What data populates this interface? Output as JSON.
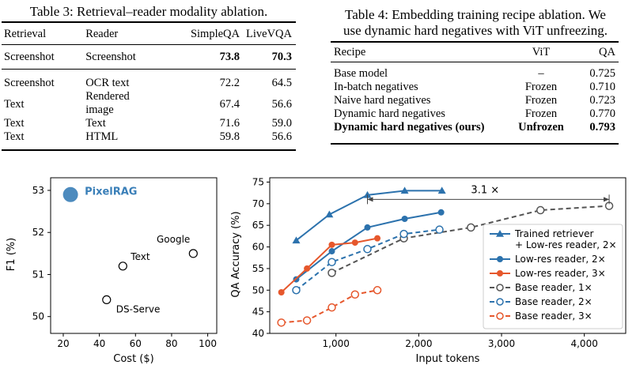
{
  "table3": {
    "caption": "Table 3: Retrieval–reader modality ablation.",
    "headers": [
      "Retrieval",
      "Reader",
      "SimpleQA",
      "LiveVQA"
    ],
    "rows": [
      [
        "Screenshot",
        "Screenshot",
        "73.8",
        "70.3"
      ],
      [
        "Screenshot",
        "OCR text",
        "72.2",
        "64.5"
      ],
      [
        "Text",
        "Rendered image",
        "67.4",
        "56.6"
      ],
      [
        "Text",
        "Text",
        "71.6",
        "59.0"
      ],
      [
        "Text",
        "HTML",
        "59.8",
        "56.6"
      ]
    ]
  },
  "table4": {
    "caption_line1": "Table 4: Embedding training recipe ablation. We",
    "caption_line2": "use dynamic hard negatives with ViT unfreezing.",
    "headers": [
      "Recipe",
      "ViT",
      "QA"
    ],
    "rows": [
      [
        "Base model",
        "–",
        "0.725"
      ],
      [
        "In-batch negatives",
        "Frozen",
        "0.710"
      ],
      [
        "Naive hard negatives",
        "Frozen",
        "0.723"
      ],
      [
        "Dynamic hard negatives",
        "Frozen",
        "0.770"
      ],
      [
        "Dynamic hard negatives (ours)",
        "Unfrozen",
        "0.793"
      ]
    ]
  },
  "chart_data": [
    {
      "type": "scatter",
      "xlabel": "Cost ($)",
      "ylabel": "F1 (%)",
      "xlim": [
        13,
        105
      ],
      "ylim": [
        49.6,
        53.3
      ],
      "xticks": [
        "20",
        "40",
        "60",
        "80",
        "100"
      ],
      "yticks": [
        "50",
        "51",
        "52",
        "53"
      ],
      "points": [
        {
          "label": "PixelRAG",
          "x": 24,
          "y": 52.9,
          "highlight": true,
          "color": "#3a7fb8"
        },
        {
          "label": "Google",
          "x": 92,
          "y": 51.5
        },
        {
          "label": "Text",
          "x": 53,
          "y": 51.2
        },
        {
          "label": "DS-Serve",
          "x": 44,
          "y": 50.4
        }
      ]
    },
    {
      "type": "line",
      "xlabel": "Input tokens",
      "ylabel": "QA Accuracy (%)",
      "xlim": [
        200,
        4500
      ],
      "ylim": [
        40,
        76
      ],
      "xticks": [
        "1,000",
        "2,000",
        "3,000",
        "4,000"
      ],
      "yticks": [
        "40",
        "45",
        "50",
        "55",
        "60",
        "65",
        "70",
        "75"
      ],
      "annotation": "3.1 ×",
      "series": [
        {
          "name": "Trained retriever\n+ Low-res reader, 2×",
          "color": "#2c72ad",
          "style": "solid",
          "marker": "triangle",
          "x": [
            520,
            920,
            1380,
            1830,
            2280
          ],
          "y": [
            61.5,
            67.5,
            72,
            73,
            73
          ]
        },
        {
          "name": "Low-res reader, 2×",
          "color": "#2c72ad",
          "style": "solid",
          "marker": "dot",
          "x": [
            520,
            950,
            1380,
            1830,
            2270
          ],
          "y": [
            52.5,
            59,
            64.5,
            66.5,
            68
          ]
        },
        {
          "name": "Low-res reader, 3×",
          "color": "#e6572c",
          "style": "solid",
          "marker": "dot",
          "x": [
            340,
            650,
            950,
            1230,
            1500
          ],
          "y": [
            49.5,
            55,
            60.5,
            61,
            62
          ]
        },
        {
          "name": "Base reader, 1×",
          "color": "#555555",
          "style": "dashed",
          "marker": "open",
          "x": [
            950,
            1820,
            2630,
            3470,
            4300
          ],
          "y": [
            54,
            62,
            64.5,
            68.5,
            69.5
          ]
        },
        {
          "name": "Base reader, 2×",
          "color": "#2c72ad",
          "style": "dashed",
          "marker": "open",
          "x": [
            520,
            950,
            1380,
            1820,
            2250
          ],
          "y": [
            50,
            56.5,
            59.5,
            63,
            64
          ]
        },
        {
          "name": "Base reader, 3×",
          "color": "#e6572c",
          "style": "dashed",
          "marker": "open",
          "x": [
            340,
            650,
            950,
            1230,
            1500
          ],
          "y": [
            42.5,
            43,
            46,
            49,
            50
          ]
        }
      ]
    }
  ]
}
